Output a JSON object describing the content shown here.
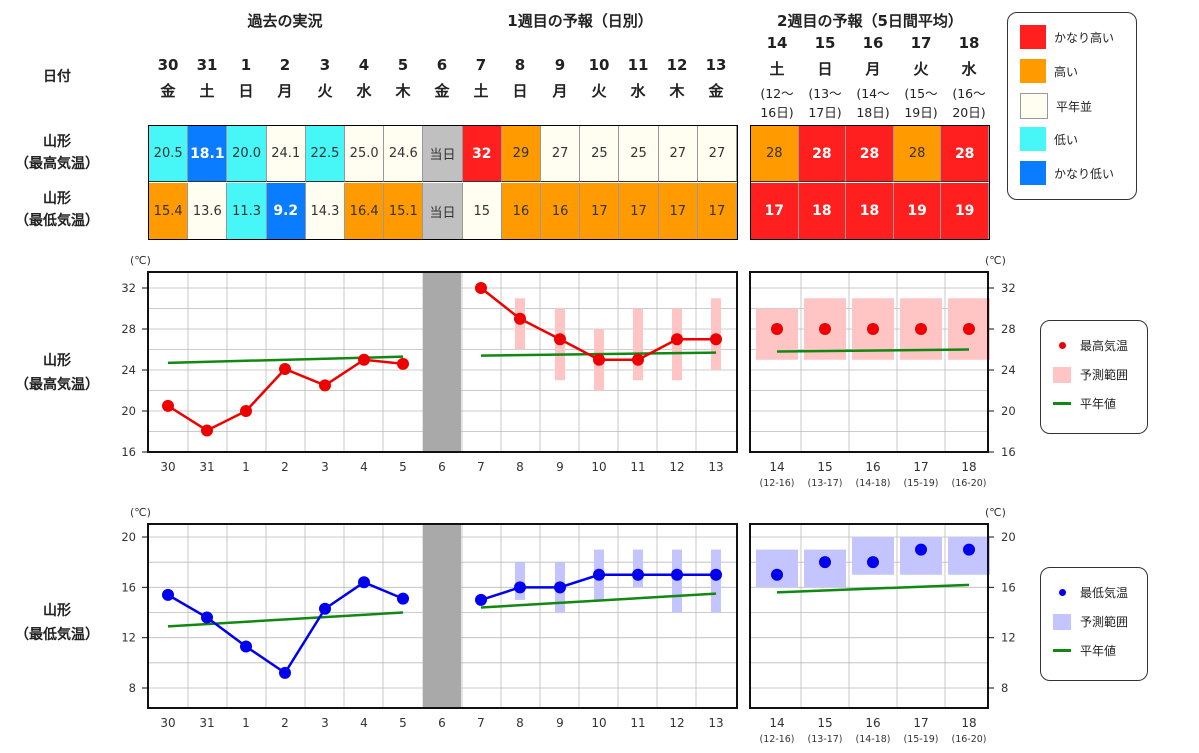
{
  "headers": {
    "past": "過去の実況",
    "week1": "1週目の予報（日別）",
    "week2": "2週目の予報（5日間平均）",
    "date_label": "日付"
  },
  "days": [
    {
      "d": "30",
      "w": "金"
    },
    {
      "d": "31",
      "w": "土"
    },
    {
      "d": "1",
      "w": "日"
    },
    {
      "d": "2",
      "w": "月"
    },
    {
      "d": "3",
      "w": "火"
    },
    {
      "d": "4",
      "w": "水"
    },
    {
      "d": "5",
      "w": "木"
    },
    {
      "d": "6",
      "w": "金"
    },
    {
      "d": "7",
      "w": "土"
    },
    {
      "d": "8",
      "w": "日"
    },
    {
      "d": "9",
      "w": "月"
    },
    {
      "d": "10",
      "w": "火"
    },
    {
      "d": "11",
      "w": "水"
    },
    {
      "d": "12",
      "w": "木"
    },
    {
      "d": "13",
      "w": "金"
    }
  ],
  "week2_days": [
    {
      "d": "14",
      "w": "土",
      "r1": "(12～",
      "r2": "16日)",
      "tick": "(12-16)"
    },
    {
      "d": "15",
      "w": "日",
      "r1": "(13～",
      "r2": "17日)",
      "tick": "(13-17)"
    },
    {
      "d": "16",
      "w": "月",
      "r1": "(14～",
      "r2": "18日)",
      "tick": "(14-18)"
    },
    {
      "d": "17",
      "w": "火",
      "r1": "(15～",
      "r2": "19日)",
      "tick": "(15-19)"
    },
    {
      "d": "18",
      "w": "水",
      "r1": "(16～",
      "r2": "20日)",
      "tick": "(16-20)"
    }
  ],
  "rows": [
    {
      "label1": "山形",
      "label2": "（最高気温）",
      "cells": [
        [
          "20.5",
          "low"
        ],
        [
          "18.1",
          "vlow"
        ],
        [
          "20.0",
          "low"
        ],
        [
          "24.1",
          "norm"
        ],
        [
          "22.5",
          "low"
        ],
        [
          "25.0",
          "norm"
        ],
        [
          "24.6",
          "norm"
        ],
        [
          "当日",
          "today"
        ],
        [
          "32",
          "vhigh"
        ],
        [
          "29",
          "high"
        ],
        [
          "27",
          "norm"
        ],
        [
          "25",
          "norm"
        ],
        [
          "25",
          "norm"
        ],
        [
          "27",
          "norm"
        ],
        [
          "27",
          "norm"
        ]
      ],
      "week2": [
        [
          "28",
          "high"
        ],
        [
          "28",
          "vhigh"
        ],
        [
          "28",
          "vhigh"
        ],
        [
          "28",
          "high"
        ],
        [
          "28",
          "vhigh"
        ]
      ]
    },
    {
      "label1": "山形",
      "label2": "（最低気温）",
      "cells": [
        [
          "15.4",
          "high"
        ],
        [
          "13.6",
          "norm"
        ],
        [
          "11.3",
          "low"
        ],
        [
          "9.2",
          "vlow"
        ],
        [
          "14.3",
          "norm"
        ],
        [
          "16.4",
          "high"
        ],
        [
          "15.1",
          "high"
        ],
        [
          "当日",
          "today"
        ],
        [
          "15",
          "norm"
        ],
        [
          "16",
          "high"
        ],
        [
          "16",
          "high"
        ],
        [
          "17",
          "high"
        ],
        [
          "17",
          "high"
        ],
        [
          "17",
          "high"
        ],
        [
          "17",
          "high"
        ]
      ],
      "week2": [
        [
          "17",
          "vhigh"
        ],
        [
          "18",
          "vhigh"
        ],
        [
          "18",
          "vhigh"
        ],
        [
          "19",
          "vhigh"
        ],
        [
          "19",
          "vhigh"
        ]
      ]
    }
  ],
  "category_legend": [
    {
      "key": "vhigh",
      "label": "かなり高い",
      "color": "#ff1f1f"
    },
    {
      "key": "high",
      "label": "高い",
      "color": "#ff9a00"
    },
    {
      "key": "norm",
      "label": "平年並",
      "color": "#fffef0"
    },
    {
      "key": "low",
      "label": "低い",
      "color": "#47f6f6"
    },
    {
      "key": "vlow",
      "label": "かなり低い",
      "color": "#0a7cff"
    }
  ],
  "today_color": "#c0c0c0",
  "chart_data": [
    {
      "type": "line",
      "title": "山形（最高気温）",
      "title1": "山形",
      "title2": "（最高気温）",
      "unit": "(℃)",
      "ylim": [
        16,
        32
      ],
      "yticks": [
        "16",
        "20",
        "24",
        "28",
        "32"
      ],
      "x_past": [
        "30",
        "31",
        "1",
        "2",
        "3",
        "4",
        "5"
      ],
      "x_today": "6",
      "x_week1": [
        "7",
        "8",
        "9",
        "10",
        "11",
        "12",
        "13"
      ],
      "observed": [
        20.5,
        18.1,
        20.0,
        24.1,
        22.5,
        25.0,
        24.6
      ],
      "forecast": [
        32,
        29,
        27,
        25,
        25,
        27,
        27
      ],
      "range_low": [
        null,
        26,
        23,
        22,
        23,
        23,
        24
      ],
      "range_high": [
        null,
        31,
        30,
        28,
        30,
        30,
        31
      ],
      "week2": [
        28,
        28,
        28,
        28,
        28
      ],
      "week2_low": [
        25,
        25,
        25,
        25,
        25
      ],
      "week2_high": [
        30,
        31,
        31,
        31,
        31
      ],
      "normal_past": [
        24.7,
        25.3
      ],
      "normal_week1": [
        25.4,
        25.7
      ],
      "normal_week2": [
        25.8,
        26.0
      ],
      "color": "#ee0000",
      "band_color": "#ffc4c4",
      "legend": {
        "point": "最高気温",
        "range": "予測範囲",
        "normal": "平年値"
      }
    },
    {
      "type": "line",
      "title": "山形（最低気温）",
      "title1": "山形",
      "title2": "（最低気温）",
      "unit": "(℃)",
      "ylim": [
        8,
        20
      ],
      "yticks": [
        "8",
        "12",
        "16",
        "20"
      ],
      "x_past": [
        "30",
        "31",
        "1",
        "2",
        "3",
        "4",
        "5"
      ],
      "x_today": "6",
      "x_week1": [
        "7",
        "8",
        "9",
        "10",
        "11",
        "12",
        "13"
      ],
      "observed": [
        15.4,
        13.6,
        11.3,
        9.2,
        14.3,
        16.4,
        15.1
      ],
      "forecast": [
        15,
        16,
        16,
        17,
        17,
        17,
        17
      ],
      "range_low": [
        null,
        15,
        14,
        15,
        16,
        14,
        14
      ],
      "range_high": [
        null,
        18,
        18,
        19,
        19,
        19,
        19
      ],
      "week2": [
        17,
        18,
        18,
        19,
        19
      ],
      "week2_low": [
        16,
        16,
        17,
        17,
        17
      ],
      "week2_high": [
        19,
        19,
        20,
        20,
        20
      ],
      "normal_past": [
        12.9,
        14.0
      ],
      "normal_week1": [
        14.4,
        15.5
      ],
      "normal_week2": [
        15.6,
        16.2
      ],
      "color": "#0000ee",
      "band_color": "#c4c4ff",
      "legend": {
        "point": "最低気温",
        "range": "予測範囲",
        "normal": "平年値"
      }
    }
  ]
}
